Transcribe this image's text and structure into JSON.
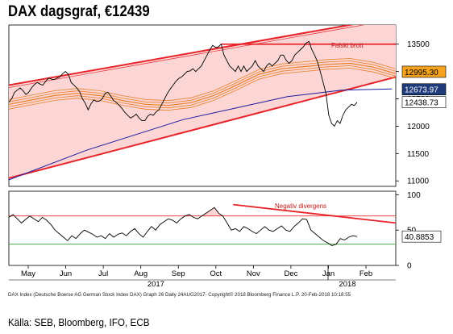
{
  "header": {
    "title": "DAX dagsgraf, €12439"
  },
  "footer": {
    "source": "Källa: SEB, Bloomberg, IFO, ECB",
    "copyright": "DAX Index (Deutsche Boerse AG German Stock Index DAX) Graph 26  Daily 24AUG2017-      Copyright© 2018 Bloomberg Finance L.P.          20-Feb-2018 10:18:55"
  },
  "colors": {
    "price": "#000000",
    "channel": "#e8242a",
    "channel_fill": "#fcd5d5",
    "moving_average": "#e8822a",
    "trend_line": "#1a1aa0",
    "label_orange": "#f5a31f",
    "label_blue": "#1e3a78",
    "label_white": "#ffffff",
    "rsi_over": "#e8242a",
    "rsi_under": "#2aa02a"
  },
  "chart_data": {
    "type": "line",
    "x_ticks": [
      "May",
      "Jun",
      "Jul",
      "Aug",
      "Sep",
      "Oct",
      "Nov",
      "Dec",
      "Jan",
      "Feb"
    ],
    "year_labels": [
      "2017",
      "2018"
    ],
    "main_panel": {
      "ylim": [
        10900,
        13850
      ],
      "y_ticks": [
        11000,
        11500,
        12000,
        12500,
        13000,
        13500
      ],
      "price_series": [
        12440,
        12500,
        12620,
        12660,
        12700,
        12650,
        12580,
        12620,
        12700,
        12760,
        12800,
        12770,
        12750,
        12820,
        12880,
        12860,
        12850,
        12880,
        12900,
        12960,
        13000,
        12950,
        12800,
        12750,
        12700,
        12630,
        12500,
        12420,
        12300,
        12410,
        12480,
        12450,
        12460,
        12500,
        12600,
        12620,
        12550,
        12470,
        12430,
        12380,
        12320,
        12250,
        12200,
        12150,
        12180,
        12220,
        12150,
        12100,
        12100,
        12180,
        12220,
        12200,
        12260,
        12300,
        12400,
        12500,
        12600,
        12680,
        12750,
        12820,
        12870,
        12900,
        12950,
        13000,
        13010,
        13050,
        13000,
        13050,
        13100,
        13200,
        13300,
        13400,
        13480,
        13440,
        13450,
        13500,
        13300,
        13200,
        13100,
        13050,
        13000,
        13100,
        13000,
        13100,
        13000,
        13050,
        13100,
        13200,
        13100,
        13050,
        13000,
        13100,
        13150,
        13100,
        13150,
        13200,
        13300,
        13300,
        13200,
        13150,
        13200,
        13300,
        13350,
        13400,
        13450,
        13520,
        13550,
        13400,
        13300,
        13180,
        13000,
        12800,
        12600,
        12200,
        12050,
        12000,
        12100,
        12050,
        12200,
        12300,
        12350,
        12400,
        12380,
        12439
      ],
      "moving_average_bands": [
        {
          "name": "MA",
          "values": [
            12400,
            12480,
            12560,
            12600,
            12560,
            12470,
            12400,
            12380,
            12430,
            12560,
            12750,
            12950,
            13050,
            13090,
            13130,
            13150,
            13080,
            12960
          ]
        }
      ],
      "channel": {
        "upper": [
          [
            0,
            12750
          ],
          [
            1,
            14000
          ]
        ],
        "lower": [
          [
            0,
            11050
          ],
          [
            1,
            12900
          ]
        ]
      },
      "horizontal_line": 13500,
      "annotations": [
        {
          "text": "Falskt brott"
        }
      ],
      "last_value_labels": [
        {
          "text": "12995.30",
          "value": 12995.3,
          "style": "orange"
        },
        {
          "text": "12673.97",
          "value": 12673.97,
          "style": "blue"
        },
        {
          "text": "12438.73",
          "value": 12438.73,
          "style": "white"
        }
      ]
    },
    "rsi_panel": {
      "ylim": [
        0,
        105
      ],
      "y_ticks": [
        0,
        50,
        100
      ],
      "overbought": 70,
      "oversold": 30,
      "rsi_series": [
        68,
        72,
        66,
        60,
        65,
        70,
        66,
        62,
        68,
        64,
        58,
        50,
        45,
        40,
        35,
        42,
        38,
        45,
        50,
        47,
        44,
        40,
        42,
        38,
        45,
        40,
        44,
        46,
        42,
        48,
        52,
        45,
        40,
        48,
        55,
        50,
        58,
        62,
        66,
        64,
        60,
        66,
        70,
        72,
        68,
        66,
        70,
        74,
        78,
        82,
        74,
        70,
        60,
        50,
        52,
        48,
        55,
        52,
        48,
        45,
        50,
        55,
        50,
        48,
        52,
        56,
        50,
        48,
        55,
        60,
        66,
        65,
        50,
        45,
        40,
        35,
        32,
        28,
        30,
        38,
        36,
        40,
        42,
        40.8853
      ],
      "divergence_line": [
        [
          0.58,
          86
        ],
        [
          1.0,
          60
        ]
      ],
      "annotations": [
        {
          "text": "Negativ divergens"
        }
      ],
      "last_value_labels": [
        {
          "text": "40.8853",
          "value": 40.8853
        }
      ]
    }
  }
}
